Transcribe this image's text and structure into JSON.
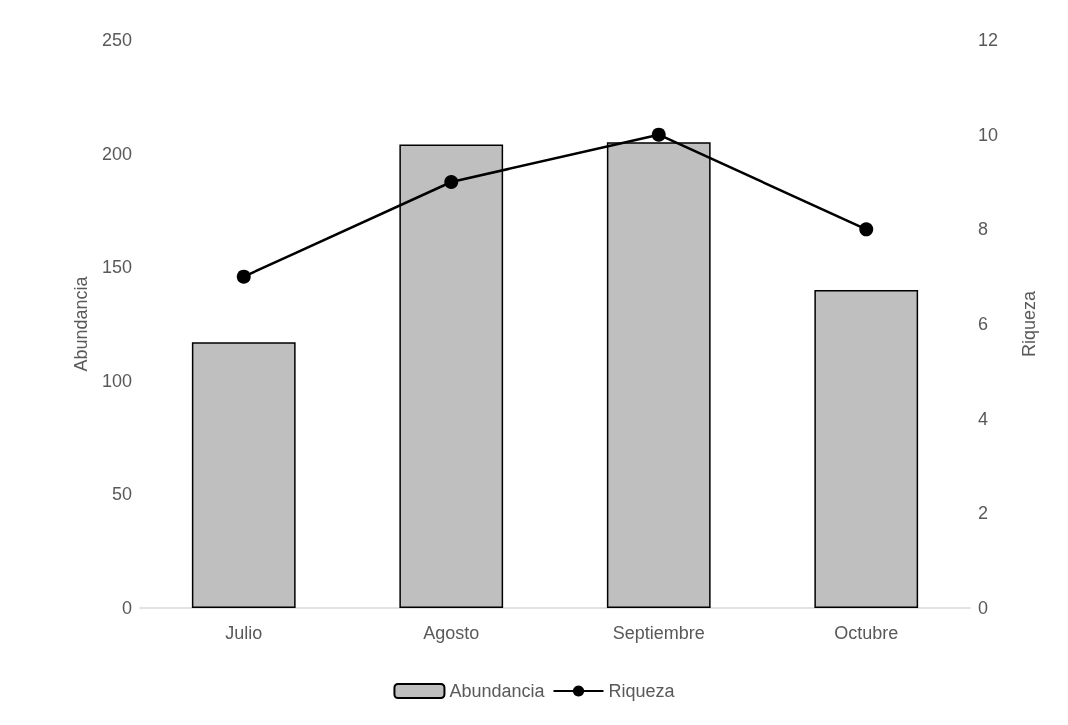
{
  "chart_data": {
    "type": "bar",
    "categories": [
      "Julio",
      "Agosto",
      "Septiembre",
      "Octubre"
    ],
    "ylabel": "Abundancia",
    "y2label": "Riqueza",
    "series": [
      {
        "name": "Abundancia",
        "color": "#bfbfbf",
        "values": [
          117,
          204,
          205,
          140
        ]
      },
      {
        "name": "Riqueza",
        "type": "line",
        "axis": "y2",
        "color": "#000000",
        "marker": "circle",
        "values": [
          7,
          9,
          10,
          8
        ]
      }
    ],
    "ylim": [
      0,
      250
    ],
    "yticks": [
      0,
      50,
      100,
      150,
      200,
      250
    ],
    "y2lim": [
      0,
      12
    ],
    "y2ticks": [
      0,
      2,
      4,
      6,
      8,
      10,
      12
    ],
    "grid": false,
    "legend": "bottom"
  }
}
